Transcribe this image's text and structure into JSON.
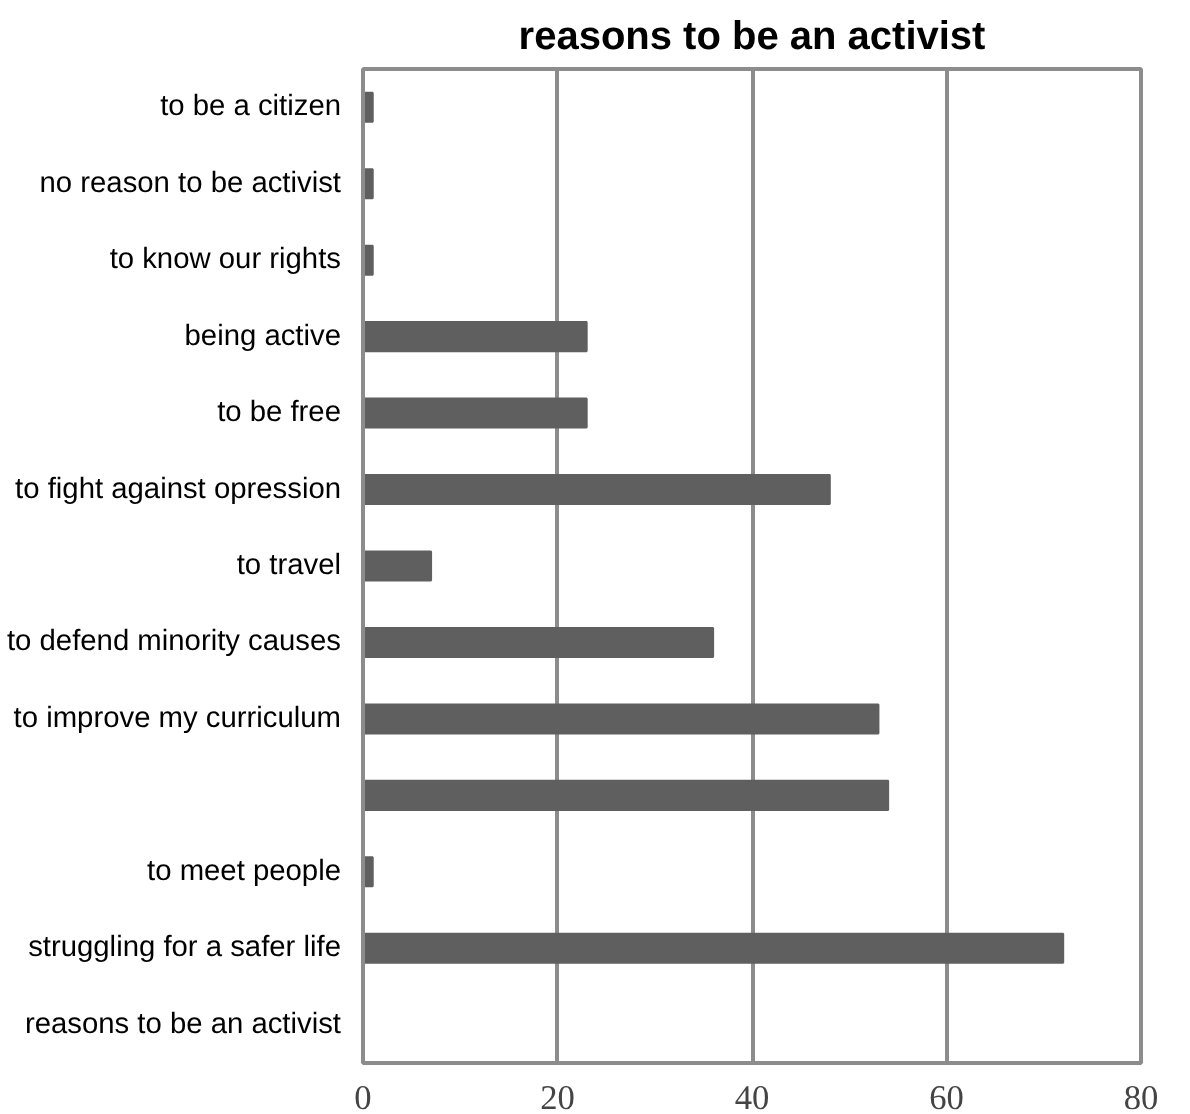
{
  "chart_data": {
    "type": "bar",
    "orientation": "horizontal",
    "title": "reasons to be an activist",
    "categories": [
      "to be a citizen",
      "no reason to be activist",
      "to know our rights",
      "being active",
      "to be free",
      "to fight against opression",
      "to travel",
      "to defend minority causes",
      "to improve my curriculum",
      null,
      "to meet people",
      "struggling for a safer life",
      "reasons to be an activist"
    ],
    "values": [
      1,
      1,
      1,
      23,
      23,
      48,
      7,
      36,
      53,
      54,
      1,
      72,
      0
    ],
    "color": "#5f5f5f",
    "xlim": [
      0,
      80
    ],
    "xticks": [
      0,
      20,
      40,
      60,
      80
    ],
    "grid": "x"
  }
}
